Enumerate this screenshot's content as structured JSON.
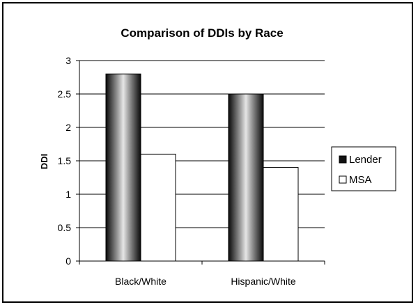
{
  "chart_data": {
    "type": "bar",
    "title": "Comparison of DDIs by Race",
    "xlabel": "",
    "ylabel": "DDI",
    "categories": [
      "Black/White",
      "Hispanic/White"
    ],
    "series": [
      {
        "name": "Lender",
        "values": [
          2.8,
          2.5
        ],
        "color": "#111111"
      },
      {
        "name": "MSA",
        "values": [
          1.6,
          1.4
        ],
        "color": "#ffffff"
      }
    ],
    "ylim": [
      0,
      3
    ],
    "yticks": [
      "0",
      "0.5",
      "1",
      "1.5",
      "2",
      "2.5",
      "3"
    ],
    "grid": true,
    "legend_position": "right"
  }
}
